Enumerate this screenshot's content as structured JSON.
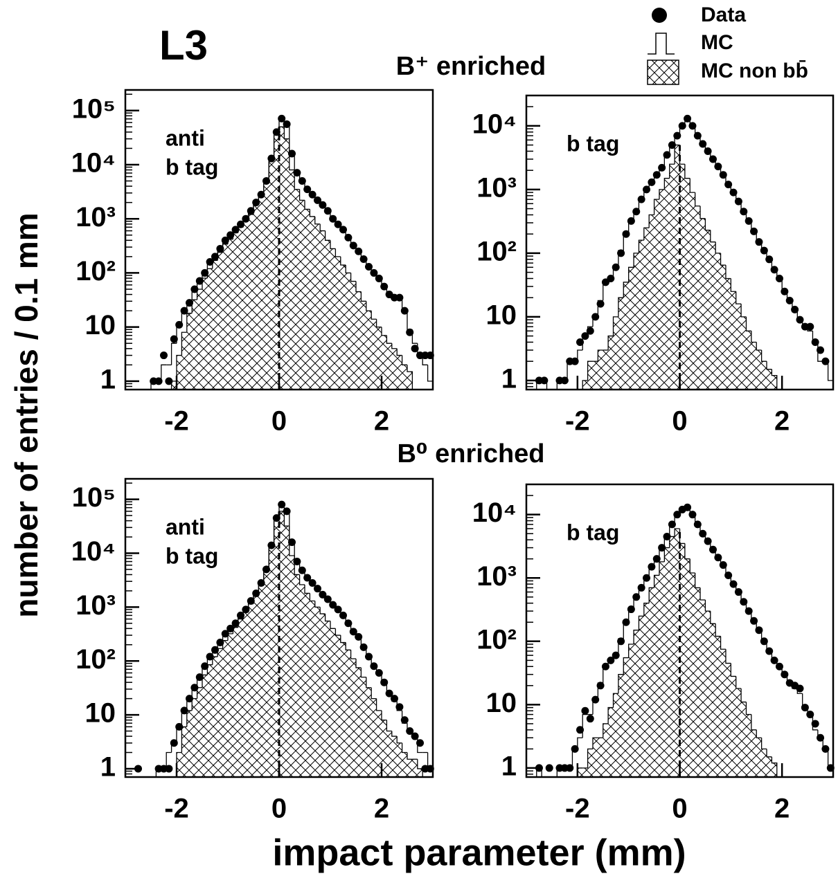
{
  "figure": {
    "label": "L3",
    "ylabel": "number of entries / 0.1 mm",
    "xlabel": "impact parameter (mm)",
    "rows": [
      "B⁺ enriched",
      "B⁰ enriched"
    ]
  },
  "chart_data": [
    {
      "type": "histogram",
      "label": [
        "anti",
        "b tag"
      ],
      "log_y": true,
      "legend": "top-right",
      "vline": 0,
      "xlim": [
        -3,
        3
      ],
      "xticks": [
        -2,
        0,
        2
      ],
      "ylim": [
        0.7,
        240000
      ],
      "yticks": [
        1,
        10,
        {
          "value": 100,
          "label": "10²"
        },
        {
          "value": 1000,
          "label": "10³"
        },
        {
          "value": 10000,
          "label": "10⁴"
        },
        {
          "value": 100000,
          "label": "10⁵"
        }
      ],
      "bins": [
        -3,
        -2.9,
        -2.8,
        -2.7,
        -2.6,
        -2.5,
        -2.4,
        -2.3,
        -2.2,
        -2.1,
        -2,
        -1.9,
        -1.8,
        -1.7,
        -1.6,
        -1.5,
        -1.4,
        -1.3,
        -1.2,
        -1.1,
        -1,
        -0.9,
        -0.8,
        -0.7,
        -0.6,
        -0.5,
        -0.4,
        -0.3,
        -0.2,
        -0.1,
        0,
        0.1,
        0.2,
        0.3,
        0.4,
        0.5,
        0.6,
        0.7,
        0.8,
        0.9,
        1,
        1.1,
        1.2,
        1.3,
        1.4,
        1.5,
        1.6,
        1.7,
        1.8,
        1.9,
        2,
        2.1,
        2.2,
        2.3,
        2.4,
        2.5,
        2.6,
        2.7,
        2.8,
        2.9,
        3
      ],
      "series": [
        {
          "name": "Data",
          "color": "#000000",
          "values": [
            null,
            null,
            null,
            null,
            null,
            1,
            1,
            3,
            1,
            6,
            11,
            20,
            28,
            50,
            71,
            100,
            160,
            200,
            280,
            400,
            500,
            630,
            790,
            1000,
            1400,
            2000,
            2800,
            5000,
            13000,
            40000,
            71000,
            56000,
            16000,
            7100,
            5000,
            3500,
            2800,
            2200,
            1800,
            1400,
            1000,
            790,
            630,
            450,
            320,
            250,
            180,
            130,
            100,
            79,
            56,
            40,
            35,
            35,
            20,
            8,
            4,
            3,
            3,
            3
          ]
        },
        {
          "name": "MC",
          "color": "#000000",
          "values": [
            null,
            null,
            null,
            null,
            null,
            1,
            1,
            2,
            2,
            5,
            10,
            18,
            30,
            48,
            70,
            100,
            150,
            200,
            290,
            390,
            500,
            640,
            800,
            1000,
            1400,
            2000,
            2900,
            5200,
            13000,
            41000,
            68000,
            54000,
            16000,
            7200,
            5000,
            3600,
            2800,
            2200,
            1800,
            1400,
            1000,
            800,
            620,
            460,
            330,
            250,
            180,
            130,
            100,
            78,
            56,
            42,
            34,
            33,
            20,
            9,
            5,
            3,
            2,
            1
          ]
        },
        {
          "name": "MC non bb̄",
          "color": "#000000",
          "values": [
            null,
            null,
            null,
            null,
            null,
            null,
            null,
            null,
            null,
            1,
            3,
            8,
            18,
            32,
            50,
            80,
            120,
            170,
            240,
            340,
            420,
            550,
            700,
            900,
            1200,
            1800,
            2600,
            4500,
            12000,
            38000,
            50000,
            30000,
            8000,
            3500,
            2200,
            1500,
            1100,
            800,
            600,
            400,
            280,
            200,
            140,
            100,
            70,
            45,
            30,
            20,
            14,
            10,
            7,
            5,
            4,
            3,
            2,
            1.5,
            null,
            null,
            null,
            null
          ]
        }
      ]
    },
    {
      "type": "histogram",
      "label": [
        "b tag"
      ],
      "log_y": true,
      "vline": 0,
      "xlim": [
        -3,
        3
      ],
      "xticks": [
        -2,
        0,
        2
      ],
      "ylim": [
        0.72,
        30000
      ],
      "yticks": [
        1,
        10,
        {
          "value": 100,
          "label": "10²"
        },
        {
          "value": 1000,
          "label": "10³"
        },
        {
          "value": 10000,
          "label": "10⁴"
        }
      ],
      "bins": [
        -3,
        -2.9,
        -2.8,
        -2.7,
        -2.6,
        -2.5,
        -2.4,
        -2.3,
        -2.2,
        -2.1,
        -2,
        -1.9,
        -1.8,
        -1.7,
        -1.6,
        -1.5,
        -1.4,
        -1.3,
        -1.2,
        -1.1,
        -1,
        -0.9,
        -0.8,
        -0.7,
        -0.6,
        -0.5,
        -0.4,
        -0.3,
        -0.2,
        -0.1,
        0,
        0.1,
        0.2,
        0.3,
        0.4,
        0.5,
        0.6,
        0.7,
        0.8,
        0.9,
        1,
        1.1,
        1.2,
        1.3,
        1.4,
        1.5,
        1.6,
        1.7,
        1.8,
        1.9,
        2,
        2.1,
        2.2,
        2.3,
        2.4,
        2.5,
        2.6,
        2.7,
        2.8,
        2.9,
        3
      ],
      "series": [
        {
          "color": "#000000",
          "values": [
            null,
            null,
            1,
            1,
            null,
            null,
            1,
            1,
            2,
            2,
            4,
            5,
            6,
            10,
            16,
            35,
            40,
            60,
            100,
            200,
            320,
            450,
            700,
            1000,
            1300,
            1700,
            2200,
            3500,
            5000,
            7000,
            10000,
            13000,
            10000,
            7000,
            5200,
            4000,
            3000,
            2300,
            1700,
            1200,
            900,
            650,
            450,
            320,
            220,
            150,
            110,
            80,
            55,
            40,
            25,
            18,
            13,
            9,
            7,
            7,
            4,
            3,
            2,
            null
          ]
        },
        {
          "color": "#000000",
          "values": [
            null,
            null,
            1,
            1,
            null,
            null,
            1,
            1,
            2,
            2,
            3,
            5,
            7,
            10,
            18,
            32,
            42,
            60,
            110,
            200,
            320,
            460,
            700,
            1000,
            1300,
            1700,
            2300,
            3600,
            5000,
            7200,
            10000,
            12500,
            9800,
            7100,
            5200,
            4000,
            3000,
            2300,
            1700,
            1200,
            900,
            640,
            460,
            320,
            220,
            150,
            110,
            78,
            55,
            40,
            26,
            18,
            12,
            9,
            7,
            6,
            4,
            2,
            2,
            1
          ]
        },
        {
          "color": "#000000",
          "values": [
            null,
            null,
            null,
            null,
            null,
            null,
            null,
            null,
            null,
            null,
            null,
            1,
            2,
            2,
            3,
            3,
            5,
            10,
            20,
            35,
            60,
            100,
            160,
            250,
            400,
            700,
            1000,
            1500,
            2500,
            5000,
            2500,
            1500,
            900,
            550,
            350,
            230,
            150,
            100,
            65,
            40,
            25,
            16,
            10,
            6,
            4,
            3,
            2,
            1.5,
            1.2,
            null,
            null,
            null,
            null,
            null,
            null,
            null,
            null,
            null,
            null,
            null
          ]
        }
      ]
    },
    {
      "type": "histogram",
      "label": [
        "anti",
        "b tag"
      ],
      "log_y": true,
      "vline": 0,
      "xlim": [
        -3,
        3
      ],
      "xticks": [
        -2,
        0,
        2
      ],
      "ylim": [
        0.7,
        240000
      ],
      "yticks": [
        1,
        10,
        {
          "value": 100,
          "label": "10²"
        },
        {
          "value": 1000,
          "label": "10³"
        },
        {
          "value": 10000,
          "label": "10⁴"
        },
        {
          "value": 100000,
          "label": "10⁵"
        }
      ],
      "bins": [
        -3,
        -2.9,
        -2.8,
        -2.7,
        -2.6,
        -2.5,
        -2.4,
        -2.3,
        -2.2,
        -2.1,
        -2,
        -1.9,
        -1.8,
        -1.7,
        -1.6,
        -1.5,
        -1.4,
        -1.3,
        -1.2,
        -1.1,
        -1,
        -0.9,
        -0.8,
        -0.7,
        -0.6,
        -0.5,
        -0.4,
        -0.3,
        -0.2,
        -0.1,
        0,
        0.1,
        0.2,
        0.3,
        0.4,
        0.5,
        0.6,
        0.7,
        0.8,
        0.9,
        1,
        1.1,
        1.2,
        1.3,
        1.4,
        1.5,
        1.6,
        1.7,
        1.8,
        1.9,
        2,
        2.1,
        2.2,
        2.3,
        2.4,
        2.5,
        2.6,
        2.7,
        2.8,
        2.9,
        3
      ],
      "series": [
        {
          "color": "#000000",
          "values": [
            null,
            null,
            1,
            null,
            null,
            null,
            1,
            1,
            1,
            3,
            6,
            12,
            20,
            32,
            50,
            80,
            120,
            160,
            220,
            320,
            400,
            500,
            700,
            900,
            1300,
            1800,
            2800,
            5000,
            14000,
            45000,
            80000,
            60000,
            16000,
            7000,
            4800,
            3500,
            2800,
            2200,
            1700,
            1400,
            1100,
            900,
            700,
            500,
            350,
            280,
            180,
            120,
            80,
            60,
            40,
            25,
            20,
            14,
            8,
            5,
            4,
            3,
            1,
            1
          ]
        },
        {
          "color": "#000000",
          "values": [
            null,
            null,
            null,
            null,
            null,
            null,
            1,
            1,
            2,
            3,
            6,
            11,
            19,
            30,
            48,
            78,
            115,
            160,
            220,
            310,
            400,
            510,
            690,
            920,
            1300,
            1800,
            2700,
            5100,
            14500,
            44000,
            78000,
            58000,
            16500,
            7200,
            4900,
            3500,
            2700,
            2200,
            1700,
            1350,
            1050,
            880,
            680,
            490,
            340,
            270,
            175,
            125,
            82,
            58,
            38,
            24,
            18,
            12,
            7,
            5,
            4,
            2,
            2,
            1
          ]
        },
        {
          "color": "#000000",
          "values": [
            null,
            null,
            null,
            null,
            null,
            null,
            null,
            null,
            null,
            null,
            2,
            6,
            12,
            20,
            32,
            55,
            85,
            120,
            170,
            240,
            320,
            420,
            600,
            800,
            1150,
            1600,
            2500,
            4500,
            13000,
            42000,
            60000,
            32000,
            9000,
            4000,
            2600,
            1800,
            1300,
            1000,
            750,
            550,
            400,
            300,
            220,
            160,
            110,
            75,
            50,
            32,
            20,
            12,
            8,
            5,
            4,
            3,
            2,
            1.5,
            1.5,
            1,
            null,
            null
          ]
        }
      ]
    },
    {
      "type": "histogram",
      "label": [
        "b tag"
      ],
      "log_y": true,
      "vline": 0,
      "xlim": [
        -3,
        3
      ],
      "xticks": [
        -2,
        0,
        2
      ],
      "ylim": [
        0.72,
        30000
      ],
      "yticks": [
        1,
        10,
        {
          "value": 100,
          "label": "10²"
        },
        {
          "value": 1000,
          "label": "10³"
        },
        {
          "value": 10000,
          "label": "10⁴"
        }
      ],
      "bins": [
        -3,
        -2.9,
        -2.8,
        -2.7,
        -2.6,
        -2.5,
        -2.4,
        -2.3,
        -2.2,
        -2.1,
        -2,
        -1.9,
        -1.8,
        -1.7,
        -1.6,
        -1.5,
        -1.4,
        -1.3,
        -1.2,
        -1.1,
        -1,
        -0.9,
        -0.8,
        -0.7,
        -0.6,
        -0.5,
        -0.4,
        -0.3,
        -0.2,
        -0.1,
        0,
        0.1,
        0.2,
        0.3,
        0.4,
        0.5,
        0.6,
        0.7,
        0.8,
        0.9,
        1,
        1.1,
        1.2,
        1.3,
        1.4,
        1.5,
        1.6,
        1.7,
        1.8,
        1.9,
        2,
        2.1,
        2.2,
        2.3,
        2.4,
        2.5,
        2.6,
        2.7,
        2.8,
        2.9,
        3
      ],
      "series": [
        {
          "color": "#000000",
          "values": [
            null,
            null,
            1,
            null,
            1,
            null,
            1,
            1,
            1,
            2,
            4,
            8,
            6,
            12,
            20,
            40,
            50,
            60,
            100,
            200,
            320,
            500,
            700,
            1000,
            1500,
            2000,
            3000,
            4500,
            7000,
            10000,
            12000,
            13000,
            10000,
            7000,
            5000,
            3800,
            2800,
            2100,
            1600,
            1100,
            800,
            600,
            420,
            300,
            210,
            150,
            100,
            70,
            50,
            40,
            30,
            22,
            20,
            18,
            9,
            7,
            5,
            3,
            2,
            1
          ]
        },
        {
          "color": "#000000",
          "values": [
            null,
            null,
            1,
            null,
            null,
            null,
            1,
            1,
            1,
            2,
            3,
            7,
            7,
            12,
            22,
            38,
            50,
            65,
            110,
            200,
            320,
            480,
            700,
            1050,
            1500,
            2000,
            2900,
            4600,
            7100,
            10000,
            12000,
            12500,
            9800,
            7000,
            5000,
            3700,
            2800,
            2100,
            1600,
            1100,
            800,
            590,
            420,
            300,
            210,
            150,
            100,
            72,
            50,
            38,
            28,
            22,
            18,
            15,
            9,
            7,
            4,
            3,
            2,
            1
          ]
        },
        {
          "color": "#000000",
          "values": [
            null,
            null,
            null,
            null,
            null,
            null,
            null,
            null,
            null,
            null,
            1,
            1,
            2,
            3,
            3,
            5,
            9,
            15,
            30,
            55,
            90,
            150,
            250,
            400,
            700,
            1100,
            1800,
            3000,
            4500,
            6000,
            3500,
            2000,
            1200,
            700,
            450,
            300,
            190,
            120,
            75,
            45,
            28,
            18,
            11,
            7,
            4,
            3,
            2,
            1.5,
            1.2,
            null,
            null,
            null,
            null,
            null,
            null,
            null,
            null,
            null,
            null,
            null
          ]
        }
      ]
    }
  ]
}
